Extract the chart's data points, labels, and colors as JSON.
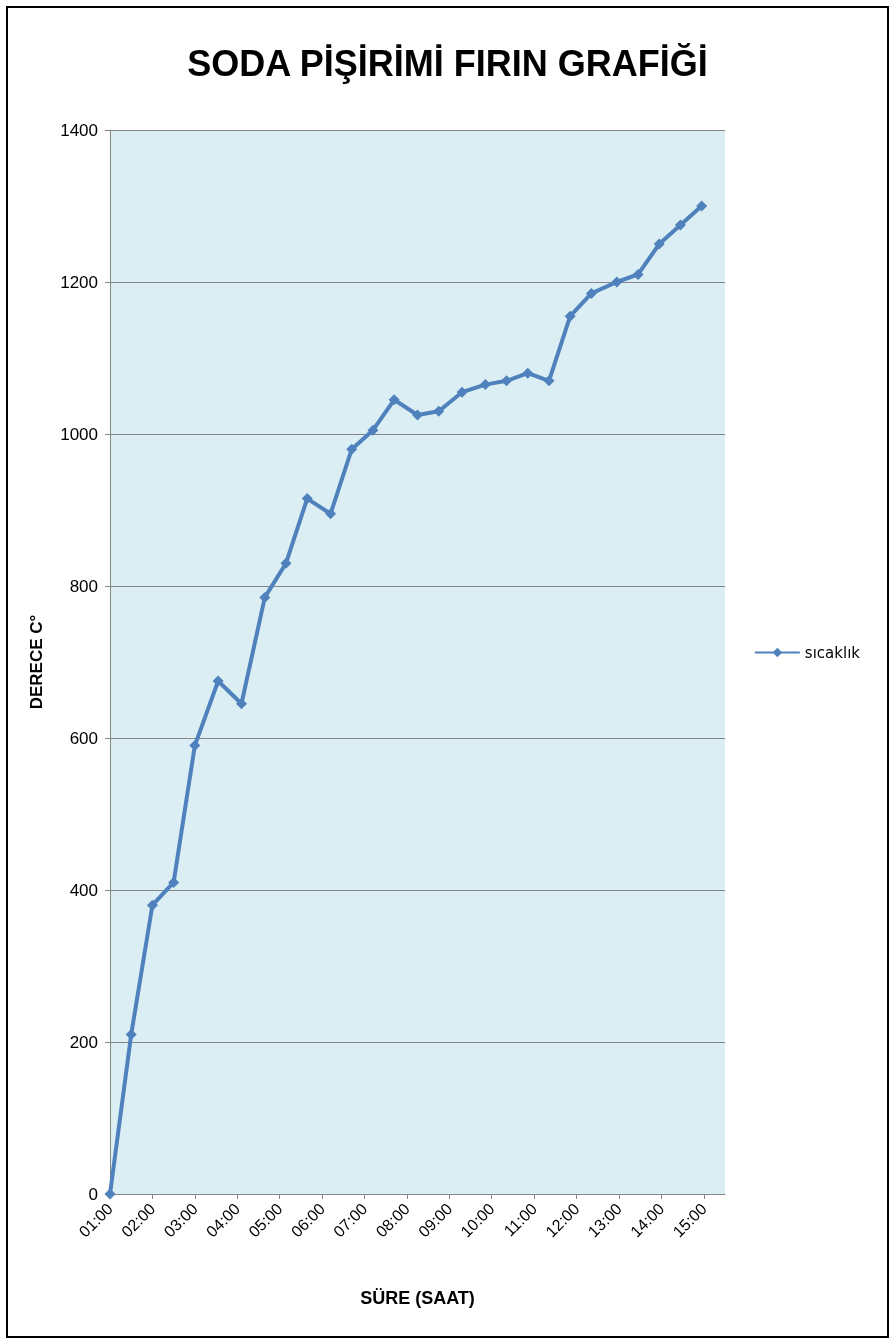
{
  "chart_data": {
    "type": "line",
    "title": "SODA PİŞİRİMİ FIRIN GRAFİĞİ",
    "xlabel": "SÜRE (SAAT)",
    "ylabel": "DERECE C°",
    "x": [
      1,
      1.5,
      2,
      2.5,
      3,
      3.55,
      4.1,
      4.65,
      5.15,
      5.65,
      6.2,
      6.7,
      7.2,
      7.7,
      8.25,
      8.75,
      9.3,
      9.85,
      10.35,
      10.85,
      11.35,
      11.85,
      12.35,
      12.95,
      13.45,
      13.95,
      14.45,
      14.95
    ],
    "series": [
      {
        "name": "sıcaklık",
        "color": "#4f81bd",
        "values": [
          0,
          210,
          380,
          410,
          590,
          675,
          645,
          785,
          830,
          915,
          895,
          980,
          1005,
          1045,
          1025,
          1030,
          1055,
          1065,
          1070,
          1080,
          1070,
          1155,
          1185,
          1200,
          1210,
          1250,
          1275,
          1300
        ]
      }
    ],
    "xlim": [
      1,
      15.5
    ],
    "xticks": [
      {
        "value": 1,
        "label": "01:00"
      },
      {
        "value": 2,
        "label": "02:00"
      },
      {
        "value": 3,
        "label": "03:00"
      },
      {
        "value": 4,
        "label": "04:00"
      },
      {
        "value": 5,
        "label": "05:00"
      },
      {
        "value": 6,
        "label": "06:00"
      },
      {
        "value": 7,
        "label": "07:00"
      },
      {
        "value": 8,
        "label": "08:00"
      },
      {
        "value": 9,
        "label": "09:00"
      },
      {
        "value": 10,
        "label": "10:00"
      },
      {
        "value": 11,
        "label": "11:00"
      },
      {
        "value": 12,
        "label": "12:00"
      },
      {
        "value": 13,
        "label": "13:00"
      },
      {
        "value": 14,
        "label": "14:00"
      },
      {
        "value": 15,
        "label": "15:00"
      }
    ],
    "ylim": [
      0,
      1400
    ],
    "yticks": [
      0,
      200,
      400,
      600,
      800,
      1000,
      1200,
      1400
    ],
    "grid": "y",
    "legend": "right",
    "marker": "diamond",
    "line_style": "solid"
  }
}
